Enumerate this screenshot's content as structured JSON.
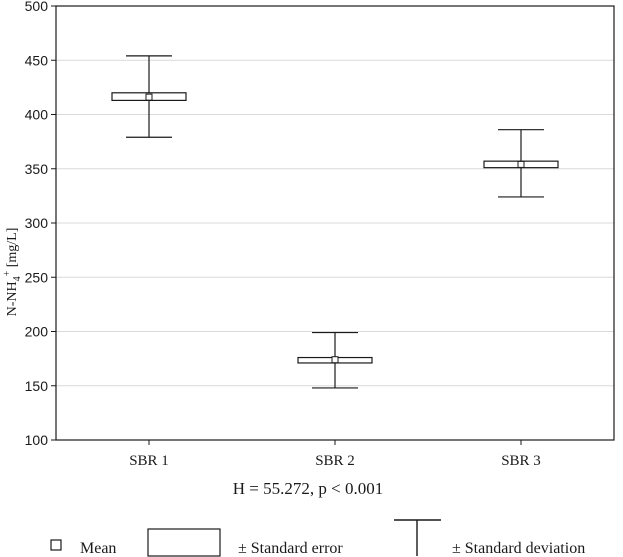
{
  "chart_data": {
    "type": "box",
    "ylabel": {
      "main": "N-NH",
      "sub": "4",
      "sup": "+",
      "unit": " [mg/L]"
    },
    "ylim": [
      100,
      500
    ],
    "yticks": [
      100,
      150,
      200,
      250,
      300,
      350,
      400,
      450,
      500
    ],
    "grid": true,
    "categories": [
      "SBR 1",
      "SBR 2",
      "SBR 3"
    ],
    "series": [
      {
        "category": "SBR 1",
        "mean": 416,
        "se_low": 413,
        "se_high": 420,
        "sd_low": 379,
        "sd_high": 454
      },
      {
        "category": "SBR 2",
        "mean": 174,
        "se_low": 171,
        "se_high": 176,
        "sd_low": 148,
        "sd_high": 199
      },
      {
        "category": "SBR 3",
        "mean": 354,
        "se_low": 351,
        "se_high": 357,
        "sd_low": 324,
        "sd_high": 386
      }
    ],
    "annotation": "H = 55.272, p < 0.001",
    "legend": {
      "placement": "bottom",
      "items": [
        "Mean",
        "± Standard error",
        "± Standard deviation"
      ]
    },
    "colors": {
      "box_fill": "#ffffff",
      "stroke": "#1a1a1a",
      "grid": "#d9d9d9"
    }
  }
}
